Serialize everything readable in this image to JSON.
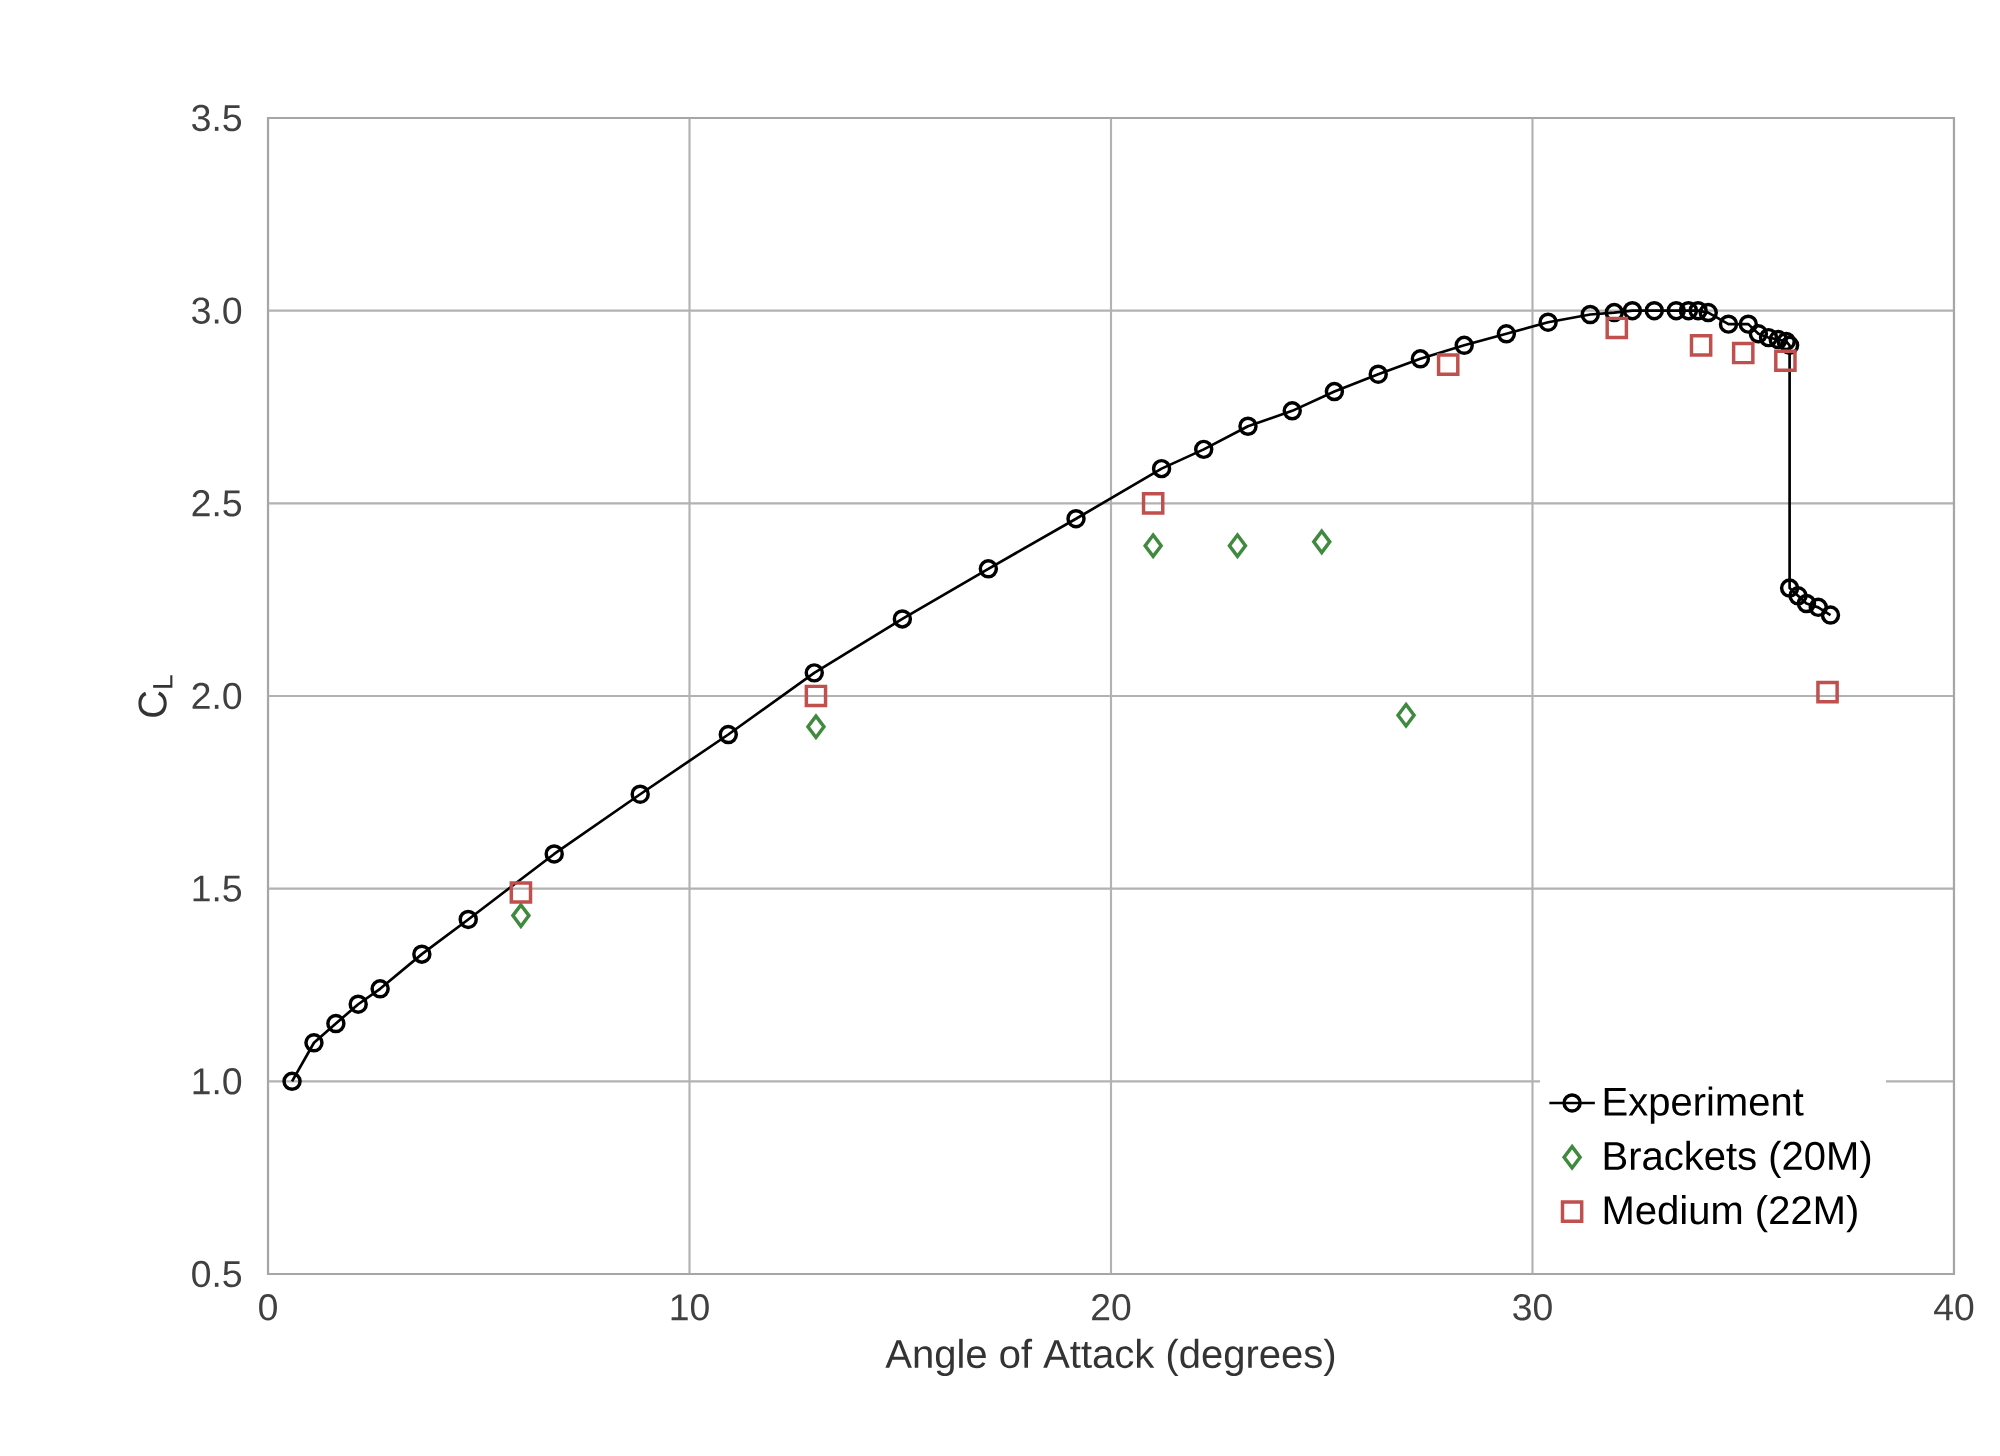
{
  "chart_data": {
    "type": "scatter",
    "xlabel": "Angle of Attack (degrees)",
    "ylabel": "C$_{L}$",
    "xlim": [
      0,
      40
    ],
    "xticks": [
      0,
      10,
      20,
      30,
      40
    ],
    "ylim": [
      0.5,
      3.5
    ],
    "yticks": [
      {
        "value": 0.5,
        "label": "0.5"
      },
      {
        "value": 1,
        "label": "1.0"
      },
      {
        "value": 1.5,
        "label": "1.5"
      },
      {
        "value": 2,
        "label": "2.0"
      },
      {
        "value": 2.5,
        "label": "2.5"
      },
      {
        "value": 3,
        "label": "3.0"
      },
      {
        "value": 3.5,
        "label": "3.5"
      }
    ],
    "grid": true,
    "legend": "bottom right",
    "series": [
      {
        "name": "Experiment",
        "type": "line",
        "marker": "circle",
        "line_style": "solid",
        "color": "#000000",
        "x": [
          0.57,
          1.09,
          1.61,
          2.14,
          2.66,
          3.65,
          4.75,
          6.79,
          8.83,
          10.92,
          12.96,
          15.05,
          17.09,
          19.17,
          21.2,
          22.2,
          23.25,
          24.3,
          25.3,
          26.34,
          27.34,
          28.38,
          29.38,
          30.37,
          31.37,
          31.94,
          32.37,
          32.89,
          33.41,
          33.7,
          33.93,
          34.17,
          34.65,
          35.12,
          35.36,
          35.6,
          35.83,
          36.02,
          36.1,
          36.1,
          36.3,
          36.5,
          36.78,
          37.07
        ],
        "values": [
          1.0,
          1.1,
          1.15,
          1.2,
          1.24,
          1.33,
          1.42,
          1.59,
          1.745,
          1.9,
          2.06,
          2.2,
          2.33,
          2.46,
          2.59,
          2.64,
          2.7,
          2.74,
          2.79,
          2.835,
          2.875,
          2.91,
          2.94,
          2.97,
          2.99,
          2.995,
          3.0,
          3.0,
          3.0,
          3.0,
          3.0,
          2.995,
          2.965,
          2.965,
          2.94,
          2.93,
          2.925,
          2.92,
          2.91,
          2.28,
          2.26,
          2.24,
          2.23,
          2.21
        ]
      },
      {
        "name": "Brackets (20M)",
        "marker": "diamond",
        "color": "#3f8a3f",
        "x": [
          6,
          13,
          21,
          23,
          25,
          27
        ],
        "values": [
          1.43,
          1.92,
          2.39,
          2.39,
          2.4,
          1.95
        ]
      },
      {
        "name": "Medium (22M)",
        "marker": "square",
        "color": "#c0504d",
        "x": [
          6,
          13,
          21,
          28,
          32,
          34,
          35,
          36,
          37
        ],
        "values": [
          1.49,
          2.0,
          2.5,
          2.86,
          2.955,
          2.91,
          2.89,
          2.87,
          2.01
        ]
      }
    ]
  }
}
